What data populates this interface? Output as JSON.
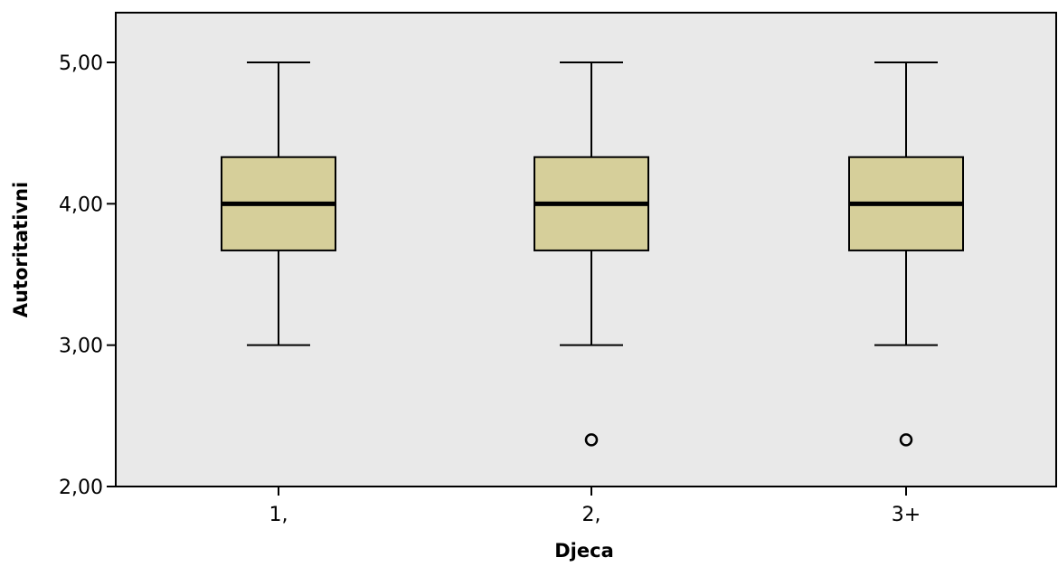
{
  "chart_data": {
    "type": "boxplot",
    "title": "",
    "xlabel": "Djeca",
    "ylabel": "Autoritativni",
    "ylim": [
      2.0,
      5.3
    ],
    "yticks": [
      2.0,
      3.0,
      4.0,
      5.0
    ],
    "ytick_labels": [
      "2,00",
      "3,00",
      "4,00",
      "5,00"
    ],
    "categories": [
      "1,",
      "2,",
      "3+"
    ],
    "boxes": [
      {
        "category": "1,",
        "min": 3.0,
        "q1": 3.67,
        "median": 4.0,
        "q3": 4.33,
        "max": 5.0,
        "outliers": []
      },
      {
        "category": "2,",
        "min": 3.0,
        "q1": 3.67,
        "median": 4.0,
        "q3": 4.33,
        "max": 5.0,
        "outliers": [
          2.33
        ]
      },
      {
        "category": "3+",
        "min": 3.0,
        "q1": 3.67,
        "median": 4.0,
        "q3": 4.33,
        "max": 5.0,
        "outliers": [
          2.33
        ]
      }
    ],
    "grid": false,
    "legend": "none",
    "colors": {
      "plot_background": "#e9e9e9",
      "box_fill": "#d6cf9a",
      "line": "#000000"
    }
  }
}
